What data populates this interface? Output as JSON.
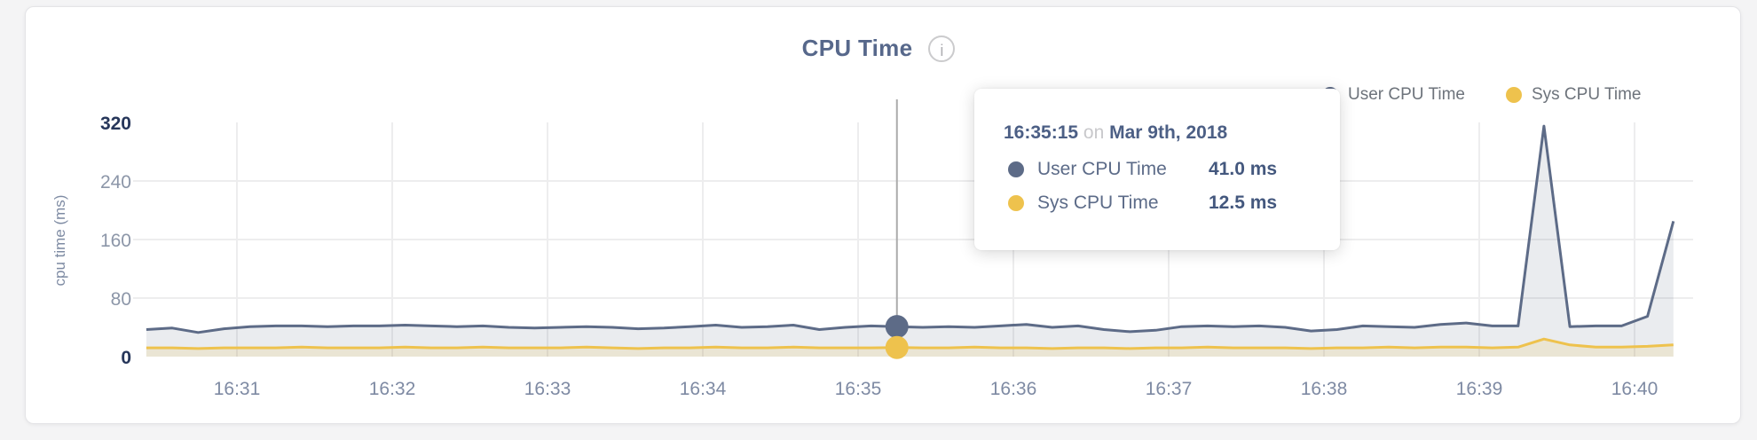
{
  "header": {
    "title": "CPU Time",
    "info_glyph": "i"
  },
  "legend": {
    "position": "top-right"
  },
  "tooltip": {
    "time": "16:35:15",
    "connector": "on",
    "date": "Mar 9th, 2018",
    "values": [
      "41.0 ms",
      "12.5 ms"
    ]
  },
  "chart_data": {
    "type": "area",
    "title": "CPU Time",
    "xlabel": "",
    "ylabel": "cpu time (ms)",
    "ylim": [
      0,
      320
    ],
    "yticks": [
      0,
      80,
      160,
      240,
      320
    ],
    "xticks": [
      "16:31",
      "16:32",
      "16:33",
      "16:34",
      "16:35",
      "16:36",
      "16:37",
      "16:38",
      "16:39",
      "16:40"
    ],
    "grid": true,
    "legend_position": "top-right",
    "x": [
      "16:30:25",
      "16:30:35",
      "16:30:45",
      "16:30:55",
      "16:31:05",
      "16:31:15",
      "16:31:25",
      "16:31:35",
      "16:31:45",
      "16:31:55",
      "16:32:05",
      "16:32:15",
      "16:32:25",
      "16:32:35",
      "16:32:45",
      "16:32:55",
      "16:33:05",
      "16:33:15",
      "16:33:25",
      "16:33:35",
      "16:33:45",
      "16:33:55",
      "16:34:05",
      "16:34:15",
      "16:34:25",
      "16:34:35",
      "16:34:45",
      "16:34:55",
      "16:35:05",
      "16:35:15",
      "16:35:25",
      "16:35:35",
      "16:35:45",
      "16:35:55",
      "16:36:05",
      "16:36:15",
      "16:36:25",
      "16:36:35",
      "16:36:45",
      "16:36:55",
      "16:37:05",
      "16:37:15",
      "16:37:25",
      "16:37:35",
      "16:37:45",
      "16:37:55",
      "16:38:05",
      "16:38:15",
      "16:38:25",
      "16:38:35",
      "16:38:45",
      "16:38:55",
      "16:39:05",
      "16:39:15",
      "16:39:25",
      "16:39:35",
      "16:39:45",
      "16:39:55",
      "16:40:05",
      "16:40:15"
    ],
    "series": [
      {
        "name": "User CPU Time",
        "color": "#5d6b87",
        "fill": "rgba(93,107,135,0.13)",
        "values": [
          37,
          39,
          33,
          38,
          41,
          42,
          42,
          41,
          42,
          42,
          43,
          42,
          41,
          42,
          40,
          39,
          40,
          41,
          40,
          38,
          39,
          41,
          43,
          40,
          41,
          43,
          37,
          40,
          42,
          41,
          40,
          41,
          40,
          42,
          44,
          40,
          42,
          37,
          34,
          36,
          41,
          42,
          41,
          42,
          40,
          35,
          37,
          42,
          41,
          40,
          44,
          46,
          42,
          42,
          315,
          41,
          42,
          42,
          55,
          185
        ]
      },
      {
        "name": "Sys CPU Time",
        "color": "#eec24d",
        "fill": "rgba(238,194,77,0.16)",
        "values": [
          12,
          12,
          11,
          12,
          12,
          12,
          13,
          12,
          12,
          12,
          13,
          12,
          12,
          13,
          12,
          12,
          12,
          13,
          12,
          11,
          12,
          12,
          13,
          12,
          12,
          13,
          12,
          12,
          12,
          12.5,
          12,
          12,
          13,
          12,
          12,
          11,
          12,
          12,
          11,
          12,
          12,
          13,
          12,
          12,
          12,
          11,
          12,
          12,
          13,
          12,
          13,
          13,
          12,
          13,
          24,
          16,
          13,
          13,
          14,
          16
        ]
      }
    ],
    "selected": {
      "time": "16:35:15",
      "user_value": 41.0,
      "sys_value": 12.5
    },
    "colors": {
      "grid": "#ededee",
      "crosshair": "#ababab",
      "tick_dark": "#26365a",
      "tick_light": "#8c96a8",
      "x_tick": "#7e8aa3",
      "axis_label": "#7e8ba3"
    }
  }
}
